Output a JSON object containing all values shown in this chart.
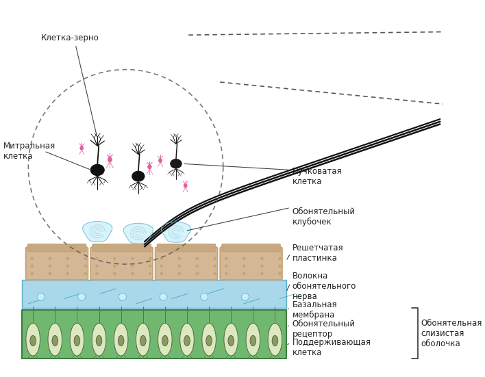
{
  "title": "",
  "bg_color": "#ffffff",
  "labels": {
    "kletka_zerno": "Клетка-зерно",
    "mitral": "Митральная\nклетка",
    "puchkovaya": "Пучковатая\nклетка",
    "klubochek": "Обонятельный\nклубочек",
    "reshetcataya": "Решетчатая\nпластинка",
    "volokna": "Волокна\nобонятельного\nнерва",
    "bazalnaya": "Базальная\nмембрана",
    "receptor": "Обонятельный\nрецептор",
    "podderzhivayushaya": "Поддерживающая\nклетка",
    "slizistaya": "Обонятельная\nслизистая\nоболочка"
  },
  "colors": {
    "neuron_black": "#1a1a1a",
    "neuron_pink": "#e060a0",
    "axon_black": "#111111",
    "bone_fill": "#d4b896",
    "bone_border": "#c4a070",
    "nerve_fill": "#a8d8ea",
    "nerve_border": "#5aaccc",
    "basal_fill": "#e8e0c0",
    "receptor_body": "#c8d8b0",
    "receptor_nucleus": "#8a9a60",
    "support_cell": "#70b870",
    "support_dark": "#3a7a3a",
    "dashed_circle": "#555555",
    "dashed_line": "#555555",
    "bracket_color": "#333333",
    "label_color": "#222222",
    "text_line_color": "#444444"
  },
  "font_size": 8.5
}
